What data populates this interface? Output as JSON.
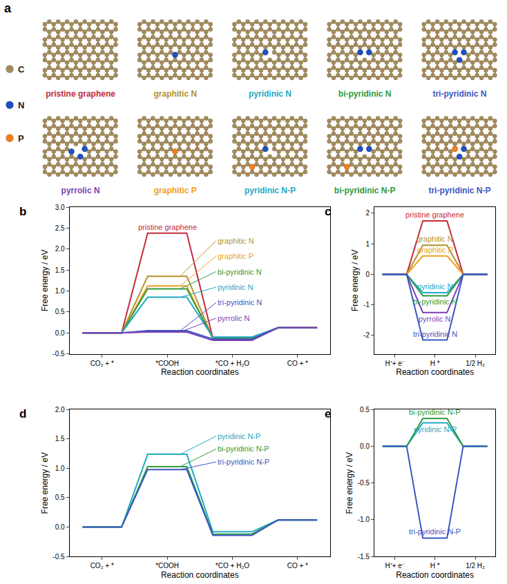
{
  "diagram": {
    "panel_label": "a",
    "legend": [
      {
        "symbol": "C",
        "color": "#a58c5c"
      },
      {
        "symbol": "N",
        "color": "#1f4fc1"
      },
      {
        "symbol": "P",
        "color": "#f07f1e"
      }
    ],
    "structures": [
      {
        "name": "pristine graphene",
        "color": "#c42a3c"
      },
      {
        "name": "graphitic N",
        "color": "#b3922a"
      },
      {
        "name": "pyridinic N",
        "color": "#22a9c4"
      },
      {
        "name": "bi-pyridinic N",
        "color": "#2e9a3e"
      },
      {
        "name": "tri-pyridinic N",
        "color": "#3a56c4"
      },
      {
        "name": "pyrrolic N",
        "color": "#7b3fb5"
      },
      {
        "name": "graphitic P",
        "color": "#f0a020"
      },
      {
        "name": "pyridinic N-P",
        "color": "#22a9c4"
      },
      {
        "name": "bi-pyridinic N-P",
        "color": "#2e9a3e"
      },
      {
        "name": "tri-pyridinic N-P",
        "color": "#3a56c4"
      }
    ]
  },
  "chart_data": [
    {
      "panel_label": "b",
      "type": "line",
      "x_label": "Reaction coordinates",
      "y_label": "Free energy / eV",
      "categories": [
        "CO₂ + *",
        "*COOH",
        "*CO + H₂O",
        "CO + *"
      ],
      "ylim": [
        -0.5,
        3.0
      ],
      "yticks": [
        -0.5,
        {
          "value": 0,
          "label": "0.0"
        },
        0.5,
        {
          "value": 1,
          "label": "1.0"
        },
        1.5,
        {
          "value": 2,
          "label": "2.0"
        },
        2.5,
        {
          "value": 3,
          "label": "3.0"
        }
      ],
      "grid": false,
      "series": [
        {
          "name": "pristine graphene",
          "color": "#c42a3c",
          "values": [
            0,
            2.38,
            -0.12,
            0.12
          ]
        },
        {
          "name": "graphitic N",
          "color": "#b3922a",
          "values": [
            0,
            1.35,
            -0.13,
            0.12
          ]
        },
        {
          "name": "graphitic P",
          "color": "#f0a020",
          "values": [
            0,
            1.12,
            -0.15,
            0.12
          ]
        },
        {
          "name": "bi-pyridinic N",
          "color": "#2e9a3e",
          "values": [
            0,
            1.05,
            -0.12,
            0.12
          ]
        },
        {
          "name": "pyridinic N",
          "color": "#22a9c4",
          "values": [
            0,
            0.85,
            -0.1,
            0.12
          ]
        },
        {
          "name": "tri-pyridinic N",
          "color": "#3a56c4",
          "values": [
            0,
            0.05,
            -0.15,
            0.12
          ]
        },
        {
          "name": "pyrrolic N",
          "color": "#7b3fb5",
          "values": [
            0,
            0.02,
            -0.18,
            0.12
          ]
        }
      ]
    },
    {
      "panel_label": "c",
      "type": "line",
      "x_label": "Reaction coordinates",
      "y_label": "Free energy / eV",
      "categories": [
        "H⁺+ e⁻",
        "H *",
        "1/2 H₂"
      ],
      "ylim": [
        -2.6,
        2.2
      ],
      "yticks": [
        -2,
        -1,
        0,
        1,
        2
      ],
      "grid": false,
      "series": [
        {
          "name": "pristine graphene",
          "color": "#c42a3c",
          "values": [
            0,
            1.75,
            0
          ]
        },
        {
          "name": "graphitic N",
          "color": "#b3922a",
          "values": [
            0,
            0.95,
            0
          ]
        },
        {
          "name": "graphitic P",
          "color": "#f0a020",
          "values": [
            0,
            0.6,
            0
          ]
        },
        {
          "name": "pyridinic N",
          "color": "#22a9c4",
          "values": [
            0,
            -0.6,
            0
          ]
        },
        {
          "name": "bi-pyridinic N",
          "color": "#2e9a3e",
          "values": [
            0,
            -0.7,
            0
          ]
        },
        {
          "name": "pyrrolic N",
          "color": "#7b3fb5",
          "values": [
            0,
            -1.25,
            0
          ]
        },
        {
          "name": "tri-pyridinic N",
          "color": "#3a56c4",
          "values": [
            0,
            -2.15,
            0
          ]
        }
      ]
    },
    {
      "panel_label": "d",
      "type": "line",
      "x_label": "Reaction coordinates",
      "y_label": "Free energy / eV",
      "categories": [
        "CO₂ + *",
        "*COOH",
        "*CO + H₂O",
        "CO + *"
      ],
      "ylim": [
        -0.5,
        2.0
      ],
      "yticks": [
        -0.5,
        {
          "value": 0,
          "label": "0.0"
        },
        0.5,
        {
          "value": 1,
          "label": "1.0"
        },
        1.5,
        {
          "value": 2,
          "label": "2.0"
        }
      ],
      "grid": false,
      "series": [
        {
          "name": "pyridinic N-P",
          "color": "#22a9c4",
          "values": [
            0,
            1.24,
            -0.08,
            0.12
          ]
        },
        {
          "name": "bi-pyridinic N-P",
          "color": "#2e9a3e",
          "values": [
            0,
            1.03,
            -0.12,
            0.12
          ]
        },
        {
          "name": "tri-pyridinic N-P",
          "color": "#3a56c4",
          "values": [
            0,
            0.98,
            -0.14,
            0.12
          ]
        }
      ]
    },
    {
      "panel_label": "e",
      "type": "line",
      "x_label": "Reaction coordinates",
      "y_label": "Free energy / eV",
      "categories": [
        "H⁺+ e⁻",
        "H *",
        "1/2 H₂"
      ],
      "ylim": [
        -1.5,
        0.5
      ],
      "yticks": [
        -1.5,
        {
          "value": -1,
          "label": "-1.0"
        },
        -0.5,
        {
          "value": 0,
          "label": "0.0"
        },
        0.5
      ],
      "grid": false,
      "series": [
        {
          "name": "pyridinic N-P",
          "color": "#22a9c4",
          "values": [
            0,
            0.32,
            0
          ]
        },
        {
          "name": "bi-pyridinic N-P",
          "color": "#2e9a3e",
          "values": [
            0,
            0.38,
            0
          ]
        },
        {
          "name": "tri-pyridinic N-P",
          "color": "#3a56c4",
          "values": [
            0,
            -1.25,
            0
          ]
        }
      ]
    }
  ]
}
